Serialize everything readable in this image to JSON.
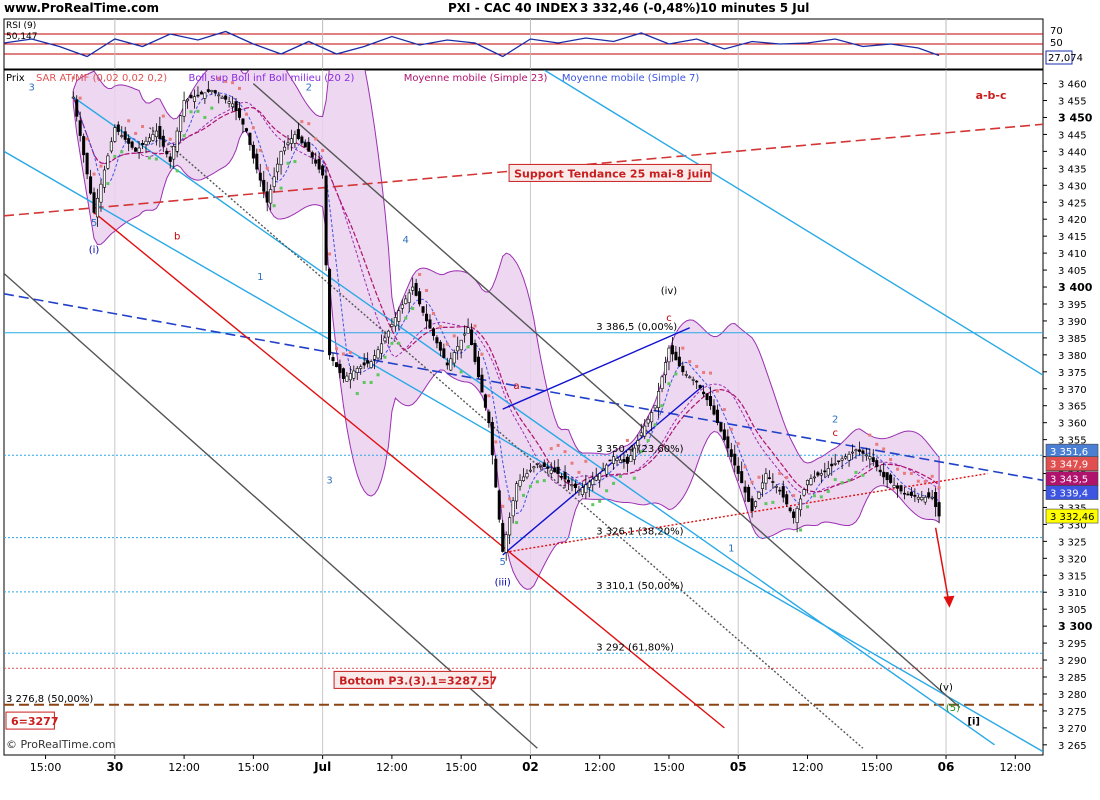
{
  "header": {
    "site": "www.ProRealTime.com",
    "instrument": "PXI - CAC 40 INDEX",
    "last_change": "3 332,46 (-0,48%)",
    "interval": "10 minutes  5 Jul"
  },
  "footer": {
    "copyright": "© ProRealTime.com"
  },
  "rsi": {
    "label": "RSI (9)",
    "value_label": "50,147",
    "current_tag": "27,074",
    "levels": [
      "70",
      "50"
    ]
  },
  "main_labels": {
    "prix": "Prix",
    "legend": [
      {
        "text": "SAR AT/MF (0,02 0,02 0,2)",
        "color": "#e05050"
      },
      {
        "text": "Boll sup Boll inf Boll milieu (20 2)",
        "color": "#8a2be2"
      },
      {
        "text": "Moyenne mobile (Simple 23)",
        "color": "#b0136d"
      },
      {
        "text": "Moyenne mobile (Simple 7)",
        "color": "#3d55e0"
      }
    ],
    "abc": "a-b-c",
    "support_box": "Support Tendance 25 mai-8 juin",
    "bottom_box": "Bottom P3.(3).1=3287,57",
    "left_box": "6=3277",
    "level_left": "3 276,8 (50,00%)"
  },
  "fib_labels": [
    {
      "text": "3 386,5 (0,00%)",
      "price": 3386.5
    },
    {
      "text": "3 350,4 (23,60%)",
      "price": 3350.4
    },
    {
      "text": "3 326,1 (38,20%)",
      "price": 3326.1
    },
    {
      "text": "3 310,1 (50,00%)",
      "price": 3310.1
    },
    {
      "text": "3 292 (61,80%)",
      "price": 3292
    }
  ],
  "wave_labels": [
    {
      "text": "3",
      "t": 4,
      "price": 3458,
      "color": "#3070c0"
    },
    {
      "text": "5",
      "t": 13,
      "price": 3418,
      "color": "#3070c0"
    },
    {
      "text": "(i)",
      "t": 13,
      "price": 3410,
      "color": "#0000aa"
    },
    {
      "text": "b",
      "t": 25,
      "price": 3414,
      "color": "#c00000"
    },
    {
      "text": "1",
      "t": 37,
      "price": 3402,
      "color": "#3070c0"
    },
    {
      "text": "2",
      "t": 44,
      "price": 3458,
      "color": "#3070c0"
    },
    {
      "text": "4",
      "t": 58,
      "price": 3413,
      "color": "#3070c0"
    },
    {
      "text": "3",
      "t": 47,
      "price": 3342,
      "color": "#3070c0"
    },
    {
      "text": "5",
      "t": 72,
      "price": 3318,
      "color": "#3070c0"
    },
    {
      "text": "(iii)",
      "t": 72,
      "price": 3312,
      "color": "#0000aa"
    },
    {
      "text": "a",
      "t": 74,
      "price": 3370,
      "color": "#c00000"
    },
    {
      "text": "(iv)",
      "t": 96,
      "price": 3398,
      "color": "#000000"
    },
    {
      "text": "c",
      "t": 96,
      "price": 3390,
      "color": "#c00000"
    },
    {
      "text": "1",
      "t": 105,
      "price": 3322,
      "color": "#3070c0"
    },
    {
      "text": "2",
      "t": 120,
      "price": 3360,
      "color": "#3070c0"
    },
    {
      "text": "c",
      "t": 120,
      "price": 3356,
      "color": "#c00000"
    },
    {
      "text": "(v)",
      "t": 136,
      "price": 3281,
      "color": "#000000"
    },
    {
      "text": "(5)",
      "t": 137,
      "price": 3275,
      "color": "#1a8c1a"
    },
    {
      "text": "[i]",
      "t": 140,
      "price": 3271,
      "color": "#000000"
    }
  ],
  "price_tags": [
    {
      "value": "3 351,6",
      "color": "#4a7fd4",
      "price": 3351.6
    },
    {
      "value": "3 347,9",
      "color": "#e05050",
      "price": 3347.9
    },
    {
      "value": "3 343,5",
      "color": "#b0136d",
      "price": 3343.5
    },
    {
      "value": "3 339,4",
      "color": "#3d55e0",
      "price": 3339.4
    },
    {
      "value": "3 332,46",
      "color": "#ffff00",
      "price": 3332.46
    }
  ],
  "chart_data": {
    "type": "candlestick",
    "instrument": "PXI - CAC 40 INDEX",
    "interval": "10 minutes",
    "ylim": [
      3262,
      3464
    ],
    "y_ticks": [
      3265,
      3270,
      3275,
      3280,
      3285,
      3290,
      3295,
      3300,
      3305,
      3310,
      3315,
      3320,
      3325,
      3330,
      3335,
      3340,
      3345,
      3350,
      3355,
      3360,
      3365,
      3370,
      3375,
      3380,
      3385,
      3390,
      3395,
      3400,
      3405,
      3410,
      3415,
      3420,
      3425,
      3430,
      3435,
      3440,
      3445,
      3450,
      3455,
      3460
    ],
    "y_tick_labels": [
      "3 265",
      "3 270",
      "3 275",
      "3 280",
      "3 285",
      "3 290",
      "3 295",
      "3 300",
      "3 305",
      "3 310",
      "3 315",
      "3 320",
      "3 325",
      "3 330",
      "3 335",
      "3 340",
      "3 345",
      "3 350",
      "3 355",
      "3 360",
      "3 365",
      "3 370",
      "3 375",
      "3 380",
      "3 385",
      "3 390",
      "3 395",
      "3 400",
      "3 405",
      "3 410",
      "3 415",
      "3 420",
      "3 425",
      "3 430",
      "3 435",
      "3 440",
      "3 445",
      "3 450",
      "3 455",
      "3 460"
    ],
    "bold_ticks": [
      "3 300",
      "3 400",
      "3 450"
    ],
    "x_ticks": [
      {
        "label": "15:00",
        "t": 6,
        "bold": false
      },
      {
        "label": "30",
        "t": 16,
        "bold": true
      },
      {
        "label": "12:00",
        "t": 26,
        "bold": false
      },
      {
        "label": "15:00",
        "t": 36,
        "bold": false
      },
      {
        "label": "Jul",
        "t": 46,
        "bold": true
      },
      {
        "label": "12:00",
        "t": 56,
        "bold": false
      },
      {
        "label": "15:00",
        "t": 66,
        "bold": false
      },
      {
        "label": "02",
        "t": 76,
        "bold": true
      },
      {
        "label": "12:00",
        "t": 86,
        "bold": false
      },
      {
        "label": "15:00",
        "t": 96,
        "bold": false
      },
      {
        "label": "05",
        "t": 106,
        "bold": true
      },
      {
        "label": "12:00",
        "t": 116,
        "bold": false
      },
      {
        "label": "15:00",
        "t": 126,
        "bold": false
      },
      {
        "label": "06",
        "t": 136,
        "bold": true
      },
      {
        "label": "12:00",
        "t": 146,
        "bold": false
      }
    ],
    "day_separators_t": [
      16,
      46,
      76,
      106,
      136
    ],
    "close_path": [
      [
        10,
        3456
      ],
      [
        13,
        3422
      ],
      [
        16,
        3447
      ],
      [
        19,
        3440
      ],
      [
        22,
        3446
      ],
      [
        24,
        3437
      ],
      [
        26,
        3455
      ],
      [
        30,
        3458
      ],
      [
        33,
        3454
      ],
      [
        35,
        3446
      ],
      [
        36,
        3438
      ],
      [
        38,
        3425
      ],
      [
        40,
        3440
      ],
      [
        42,
        3445
      ],
      [
        44,
        3440
      ],
      [
        46,
        3433
      ],
      [
        47,
        3380
      ],
      [
        49,
        3373
      ],
      [
        51,
        3376
      ],
      [
        53,
        3378
      ],
      [
        55,
        3385
      ],
      [
        57,
        3393
      ],
      [
        59,
        3400
      ],
      [
        61,
        3390
      ],
      [
        64,
        3377
      ],
      [
        67,
        3388
      ],
      [
        68,
        3378
      ],
      [
        70,
        3360
      ],
      [
        72,
        3322
      ],
      [
        74,
        3342
      ],
      [
        77,
        3348
      ],
      [
        80,
        3345
      ],
      [
        83,
        3340
      ],
      [
        86,
        3345
      ],
      [
        88,
        3350
      ],
      [
        90,
        3348
      ],
      [
        92,
        3357
      ],
      [
        94,
        3365
      ],
      [
        96,
        3382
      ],
      [
        98,
        3375
      ],
      [
        100,
        3372
      ],
      [
        102,
        3365
      ],
      [
        104,
        3355
      ],
      [
        106,
        3345
      ],
      [
        108,
        3334
      ],
      [
        110,
        3345
      ],
      [
        112,
        3340
      ],
      [
        114,
        3332
      ],
      [
        116,
        3343
      ],
      [
        118,
        3345
      ],
      [
        120,
        3348
      ],
      [
        123,
        3352
      ],
      [
        125,
        3350
      ],
      [
        127,
        3344
      ],
      [
        130,
        3339
      ],
      [
        132,
        3338
      ],
      [
        134,
        3338
      ],
      [
        135,
        3332.46
      ]
    ],
    "horizontal_levels": [
      {
        "price": 3386.5,
        "color": "#29a9e6",
        "style": "solid"
      },
      {
        "price": 3350.4,
        "color": "#29a9e6",
        "style": "dotted"
      },
      {
        "price": 3326.1,
        "color": "#29a9e6",
        "style": "dotted"
      },
      {
        "price": 3310.1,
        "color": "#29a9e6",
        "style": "dotted"
      },
      {
        "price": 3292,
        "color": "#29a9e6",
        "style": "dotted"
      },
      {
        "price": 3287.57,
        "color": "#e05050",
        "style": "dotted"
      },
      {
        "price": 3276.8,
        "color": "#8b4513",
        "style": "dashed"
      }
    ],
    "trend_lines": [
      {
        "name": "support-25mai-8juin",
        "from": [
          0,
          3421
        ],
        "to": [
          150,
          3448
        ],
        "color": "#d43535",
        "style": "dashed"
      },
      {
        "name": "blue-dashed-trend",
        "from": [
          0,
          3398
        ],
        "to": [
          150,
          3343
        ],
        "color": "#2040c8",
        "style": "dashed"
      },
      {
        "name": "red-base-line",
        "from": [
          13,
          3422
        ],
        "to": [
          104,
          3270
        ],
        "color": "#e01010",
        "style": "solid"
      },
      {
        "name": "light-blue-upper",
        "from": [
          0,
          3440
        ],
        "to": [
          150,
          3263
        ],
        "color": "#29a9e6",
        "style": "solid"
      },
      {
        "name": "light-blue-channel",
        "from": [
          78,
          3464
        ],
        "to": [
          150,
          3374
        ],
        "color": "#29a9e6",
        "style": "solid"
      },
      {
        "name": "light-blue-lower",
        "from": [
          10,
          3456
        ],
        "to": [
          143,
          3265
        ],
        "color": "#29a9e6",
        "style": "solid"
      },
      {
        "name": "grey-upper",
        "from": [
          36,
          3460
        ],
        "to": [
          138,
          3276
        ],
        "color": "#555555",
        "style": "solid"
      },
      {
        "name": "grey-lower",
        "from": [
          0,
          3404
        ],
        "to": [
          77,
          3264
        ],
        "color": "#555555",
        "style": "solid"
      },
      {
        "name": "grey-dotted",
        "from": [
          21,
          3447
        ],
        "to": [
          124,
          3264
        ],
        "color": "#555555",
        "style": "dotted"
      },
      {
        "name": "red-dotted-rising",
        "from": [
          73,
          3322
        ],
        "to": [
          142,
          3345
        ],
        "color": "#e01010",
        "style": "dotted"
      },
      {
        "name": "blue-channel-upper",
        "from": [
          72,
          3364
        ],
        "to": [
          99,
          3388
        ],
        "color": "#1010d0",
        "style": "solid"
      },
      {
        "name": "blue-channel-lower",
        "from": [
          72,
          3321
        ],
        "to": [
          101,
          3371
        ],
        "color": "#1010d0",
        "style": "solid"
      }
    ],
    "arrow": {
      "from": [
        134.5,
        3329
      ],
      "to": [
        136.5,
        3306
      ],
      "color": "#e01010"
    },
    "rsi_series": [
      [
        0,
        52
      ],
      [
        4,
        60
      ],
      [
        8,
        45
      ],
      [
        12,
        25
      ],
      [
        16,
        60
      ],
      [
        20,
        45
      ],
      [
        24,
        70
      ],
      [
        28,
        58
      ],
      [
        32,
        75
      ],
      [
        36,
        50
      ],
      [
        40,
        30
      ],
      [
        44,
        55
      ],
      [
        48,
        30
      ],
      [
        52,
        45
      ],
      [
        56,
        65
      ],
      [
        60,
        48
      ],
      [
        64,
        58
      ],
      [
        68,
        52
      ],
      [
        72,
        25
      ],
      [
        76,
        60
      ],
      [
        80,
        52
      ],
      [
        84,
        62
      ],
      [
        88,
        55
      ],
      [
        92,
        72
      ],
      [
        96,
        50
      ],
      [
        100,
        60
      ],
      [
        104,
        40
      ],
      [
        108,
        55
      ],
      [
        112,
        50
      ],
      [
        116,
        52
      ],
      [
        120,
        60
      ],
      [
        124,
        45
      ],
      [
        128,
        50
      ],
      [
        132,
        42
      ],
      [
        135,
        27
      ]
    ]
  }
}
